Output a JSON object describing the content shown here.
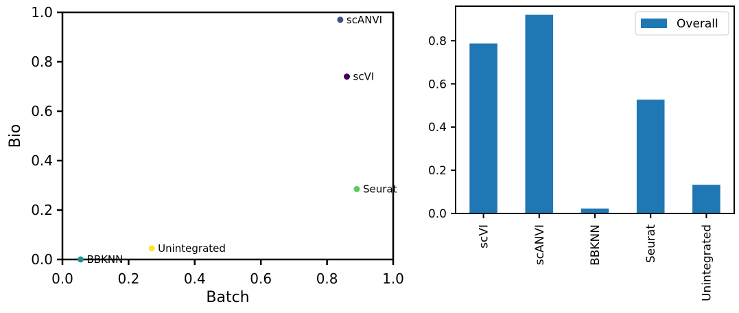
{
  "chart_data": [
    {
      "type": "scatter",
      "xlabel": "Batch",
      "ylabel": "Bio",
      "xlim": [
        0.0,
        1.0
      ],
      "ylim": [
        0.0,
        1.0
      ],
      "xticks": [
        "0.0",
        "0.2",
        "0.4",
        "0.6",
        "0.8",
        "1.0"
      ],
      "yticks": [
        "0.0",
        "0.2",
        "0.4",
        "0.6",
        "0.8",
        "1.0"
      ],
      "grid": false,
      "points": [
        {
          "label": "scVI",
          "x": 0.86,
          "y": 0.74,
          "color": "#440154"
        },
        {
          "label": "scANVI",
          "x": 0.84,
          "y": 0.97,
          "color": "#3b528b"
        },
        {
          "label": "BBKNN",
          "x": 0.055,
          "y": 0.0,
          "color": "#21918c"
        },
        {
          "label": "Seurat",
          "x": 0.89,
          "y": 0.285,
          "color": "#5ec962"
        },
        {
          "label": "Unintegrated",
          "x": 0.27,
          "y": 0.045,
          "color": "#fde725"
        }
      ]
    },
    {
      "type": "bar",
      "categories": [
        "scVI",
        "scANVI",
        "BBKNN",
        "Seurat",
        "Unintegrated"
      ],
      "series": [
        {
          "name": "Overall",
          "values": [
            0.787,
            0.92,
            0.023,
            0.527,
            0.133
          ],
          "color": "#1f77b4"
        }
      ],
      "ylim": [
        0.0,
        0.96
      ],
      "yticks": [
        "0.0",
        "0.2",
        "0.4",
        "0.6",
        "0.8"
      ],
      "grid": false,
      "legend": "top-right"
    }
  ]
}
